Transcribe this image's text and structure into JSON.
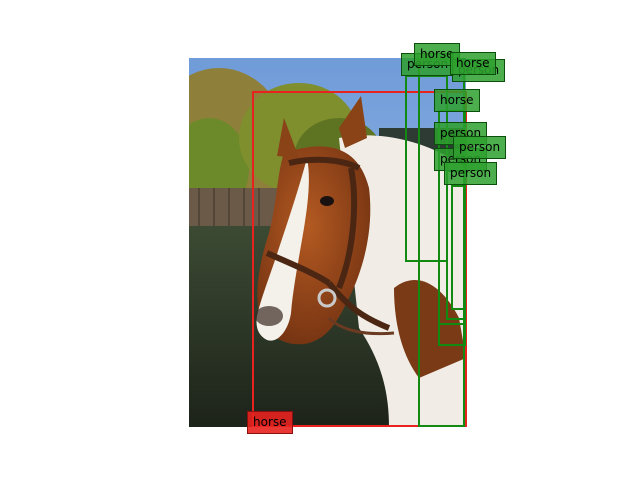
{
  "colors": {
    "red_box": "#e8221f",
    "green_box": "#128a12",
    "green_label_bg": "#2ea02e",
    "red_label_bg": "#e8221f"
  },
  "detections": [
    {
      "label": "horse",
      "color": "red"
    },
    {
      "label": "person",
      "color": "green"
    },
    {
      "label": "horse",
      "color": "green"
    },
    {
      "label": "horse",
      "color": "green"
    },
    {
      "label": "person",
      "color": "green"
    },
    {
      "label": "horse",
      "color": "green"
    },
    {
      "label": "person",
      "color": "green"
    },
    {
      "label": "person",
      "color": "green"
    },
    {
      "label": "person",
      "color": "green"
    },
    {
      "label": "person",
      "color": "green"
    }
  ]
}
